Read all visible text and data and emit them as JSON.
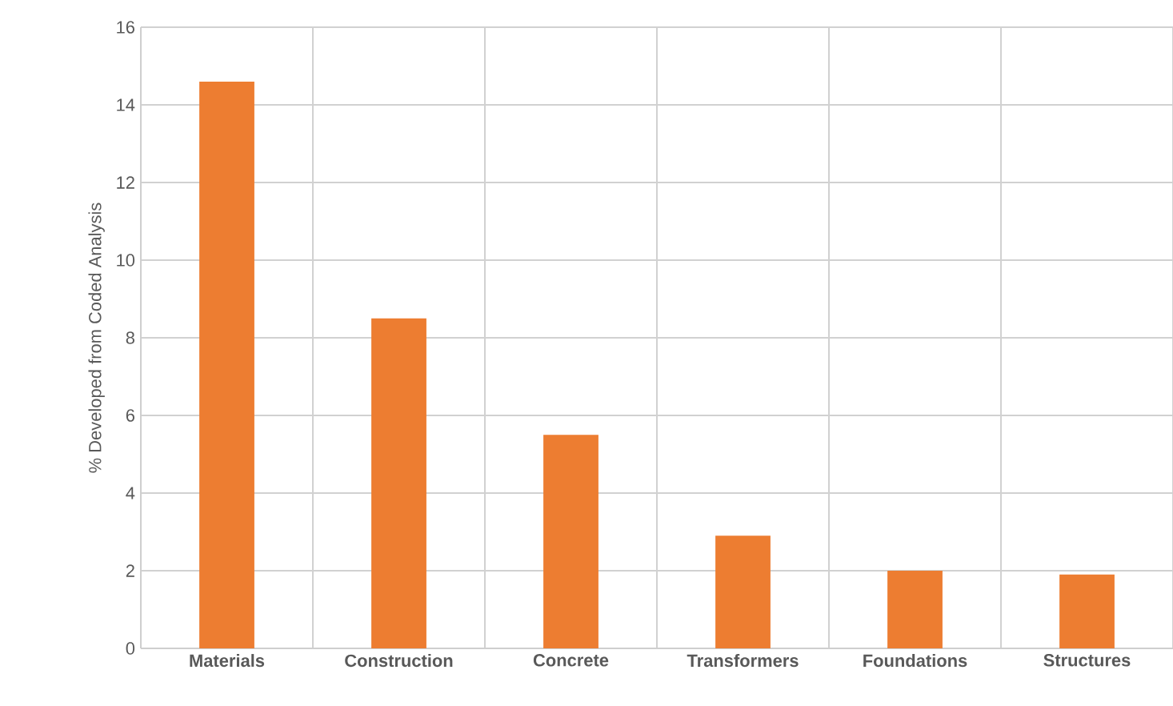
{
  "chart_data": {
    "type": "bar",
    "ylabel": "% Developed from Coded Analysis",
    "categories": [
      "Materials",
      "Construction",
      "Concrete",
      "Transformers",
      "Foundations",
      "Structures"
    ],
    "values": [
      14.6,
      8.5,
      5.5,
      2.9,
      2.0,
      1.9
    ],
    "color": "#ed7d31",
    "ylim": [
      0,
      16
    ],
    "yticks": [
      0,
      2,
      4,
      6,
      8,
      10,
      12,
      14,
      16
    ],
    "grid": true
  }
}
